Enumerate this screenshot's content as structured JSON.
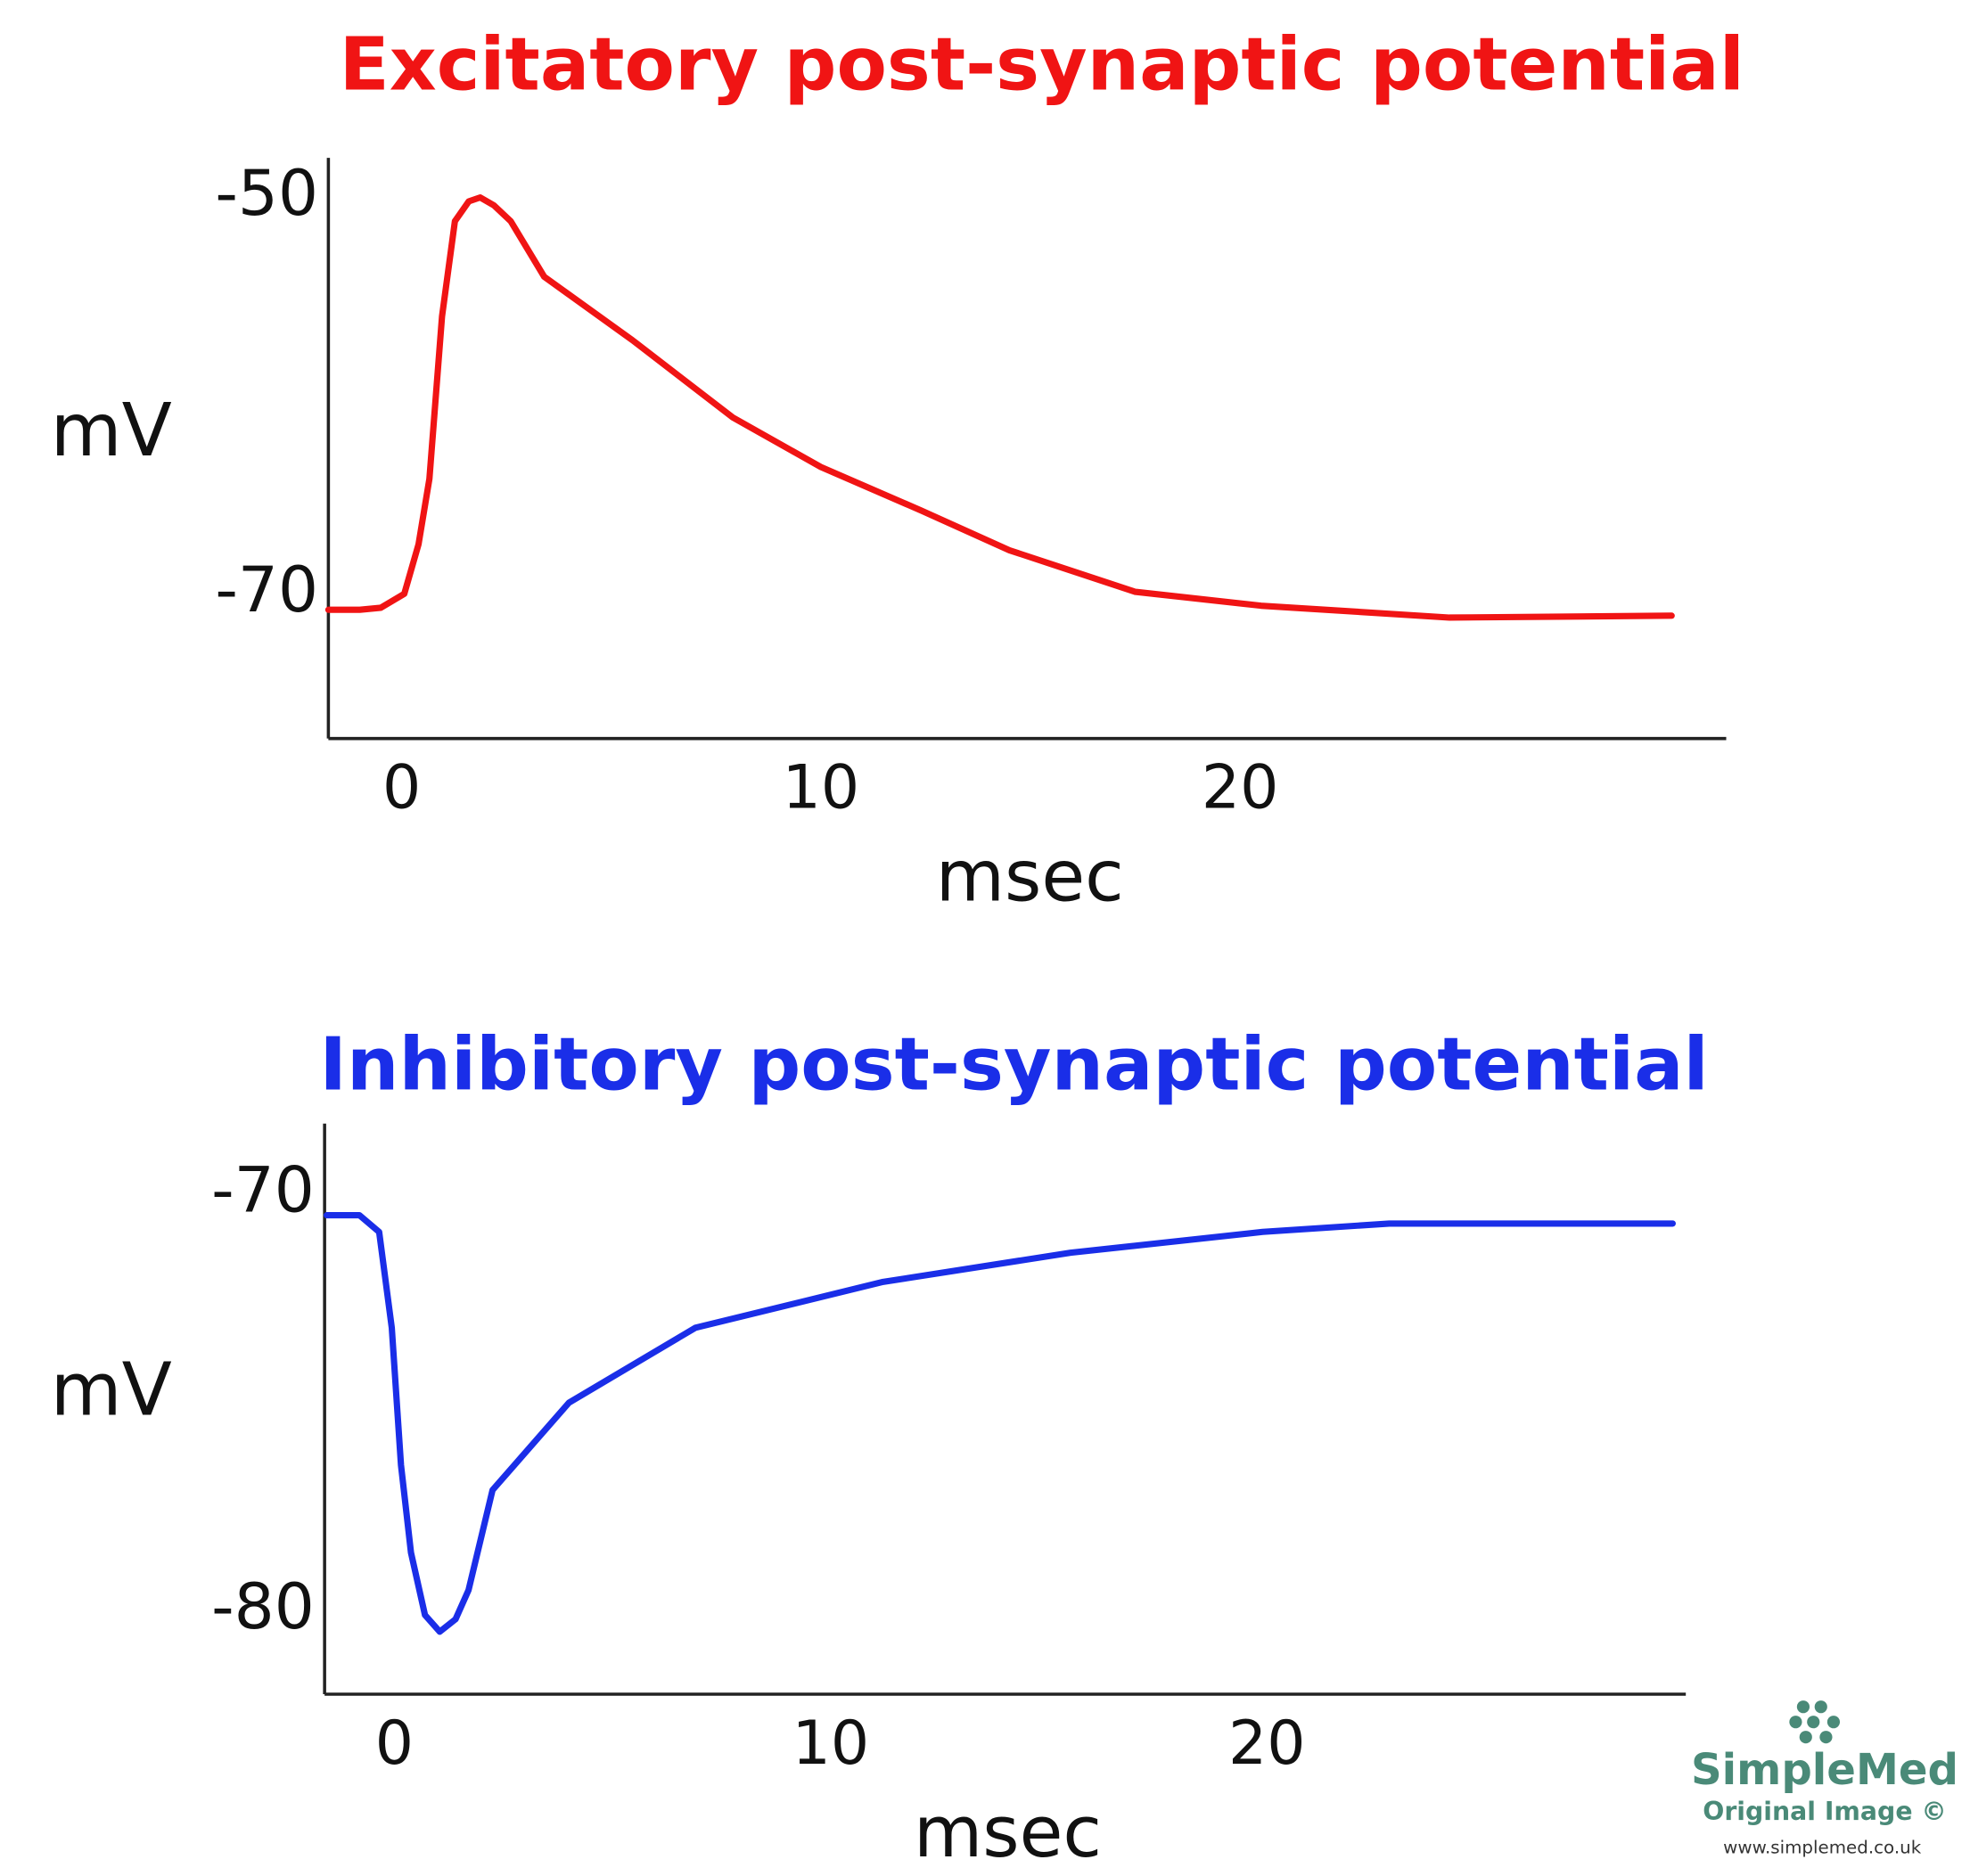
{
  "chart_data": [
    {
      "type": "line",
      "title": "Excitatory post-synaptic potential",
      "x_label": "msec",
      "y_label": "mV",
      "x": [
        -1.75,
        -1,
        -0.5,
        0.06,
        0.4,
        0.66,
        0.96,
        1.27,
        1.6,
        1.87,
        2.2,
        2.6,
        3.4,
        5.5,
        7.9,
        10,
        12.4,
        14.5,
        17.5,
        20.5,
        25,
        30.3
      ],
      "series": [
        {
          "color": "#f01414",
          "values": [
            -70.8,
            -70.8,
            -70.7,
            -70,
            -67.5,
            -64.2,
            -56,
            -51.2,
            -50.2,
            -50,
            -50.4,
            -51.2,
            -54,
            -57.2,
            -61.1,
            -63.6,
            -65.8,
            -67.8,
            -69.9,
            -70.6,
            -71.2,
            -71.1
          ]
        }
      ],
      "xlim": [
        -1.75,
        31.6
      ],
      "ylim": [
        -77.3,
        -48
      ],
      "xticks": [
        0,
        10,
        20
      ],
      "yticks": [
        -70,
        -50
      ],
      "grid": false
    },
    {
      "type": "line",
      "title": "Inhibitory post-synaptic potential",
      "x_label": "msec",
      "y_label": "mV",
      "x": [
        -1.55,
        -0.8,
        -0.35,
        -0.06,
        0.15,
        0.38,
        0.7,
        1.04,
        1.4,
        1.7,
        2.25,
        4,
        6.9,
        11.2,
        15.5,
        19.9,
        22.8,
        29.3
      ],
      "series": [
        {
          "color": "#1a2ee8",
          "values": [
            -70.5,
            -70.5,
            -70.9,
            -73.2,
            -76.5,
            -78.6,
            -80.1,
            -80.5,
            -80.2,
            -79.5,
            -77.1,
            -75,
            -73.2,
            -72.1,
            -71.4,
            -70.9,
            -70.7,
            -70.7
          ]
        }
      ],
      "xlim": [
        -1.6,
        29.6
      ],
      "ylim": [
        -82,
        -68.3
      ],
      "xticks": [
        0,
        10,
        20
      ],
      "yticks": [
        -80,
        -70
      ],
      "grid": false
    }
  ],
  "watermark": {
    "brand": "SimpleMed",
    "line": "Original Image ©",
    "url": "www.simplemed.co.uk"
  }
}
